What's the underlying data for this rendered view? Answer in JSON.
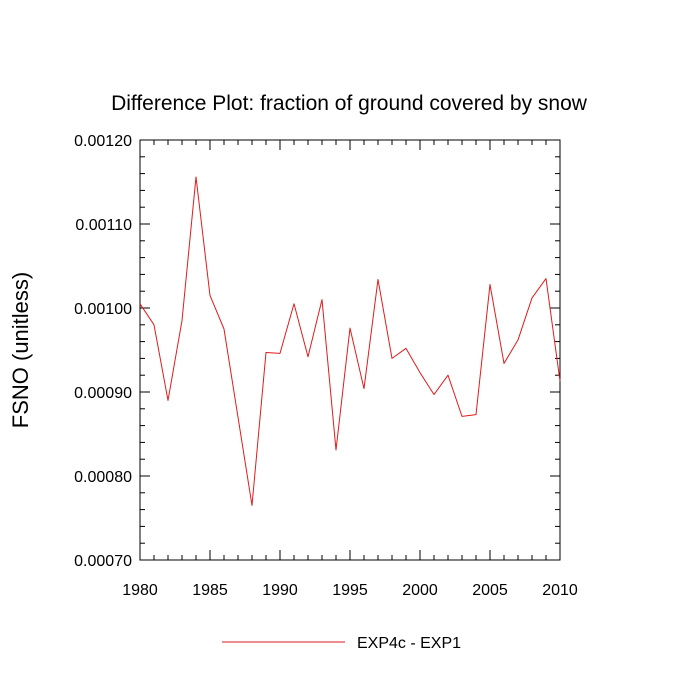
{
  "chart_data": {
    "type": "line",
    "title": "Difference Plot: fraction of ground covered by snow",
    "xlabel": "",
    "ylabel": "FSNO  (unitless)",
    "xlim": [
      1980,
      2010
    ],
    "ylim": [
      0.0007,
      0.0012
    ],
    "xticks": [
      1980,
      1985,
      1990,
      1995,
      2000,
      2005,
      2010
    ],
    "xtick_labels": [
      "1980",
      "1985",
      "1990",
      "1995",
      "2000",
      "2005",
      "2010"
    ],
    "yticks": [
      0.0007,
      0.0008,
      0.0009,
      0.001,
      0.0011,
      0.0012
    ],
    "ytick_labels": [
      "0.00070",
      "0.00080",
      "0.00090",
      "0.00100",
      "0.00110",
      "0.00120"
    ],
    "grid": false,
    "legend_position": "bottom",
    "series": [
      {
        "name": "EXP4c - EXP1",
        "color": "#e31a1c",
        "x": [
          1980,
          1981,
          1982,
          1983,
          1984,
          1985,
          1986,
          1987,
          1988,
          1989,
          1990,
          1991,
          1992,
          1993,
          1994,
          1995,
          1996,
          1997,
          1998,
          1999,
          2000,
          2001,
          2002,
          2003,
          2004,
          2005,
          2006,
          2007,
          2008,
          2009,
          2010
        ],
        "values": [
          0.001005,
          0.00098,
          0.00089,
          0.000985,
          0.001156,
          0.001015,
          0.000975,
          0.00087,
          0.000765,
          0.000947,
          0.000946,
          0.001005,
          0.000942,
          0.00101,
          0.000831,
          0.000976,
          0.000904,
          0.001034,
          0.00094,
          0.000952,
          0.000923,
          0.000897,
          0.00092,
          0.000871,
          0.000873,
          0.001028,
          0.000934,
          0.000962,
          0.001012,
          0.001035,
          0.000913
        ]
      }
    ]
  }
}
